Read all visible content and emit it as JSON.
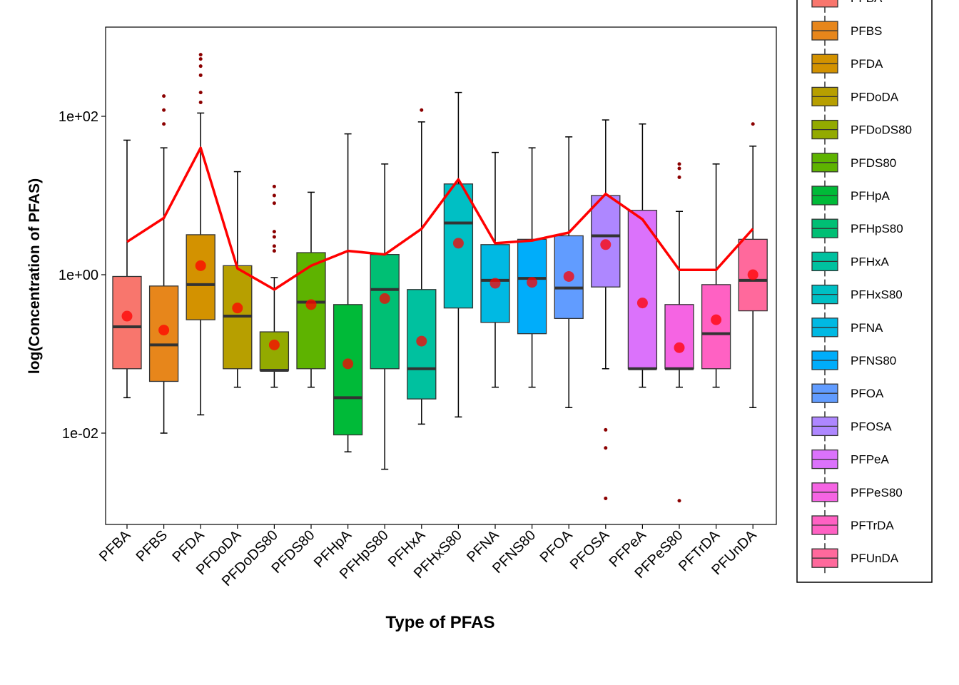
{
  "chart_data": {
    "type": "box",
    "title": "",
    "xlabel": "Type of PFAS",
    "ylabel": "log(Concentration of PFAS)",
    "y_scale": "log10",
    "ylim": [
      0.0003,
      2000
    ],
    "y_ticks": [
      0.01,
      1,
      100
    ],
    "y_tick_labels": [
      "1e-02",
      "1e+00",
      "1e+02"
    ],
    "grid": false,
    "legend_position": "right",
    "mean_marker_color": "#ff0000",
    "outlier_color": "#8b0000",
    "line_color": "#ff0000",
    "categories": [
      "PFBA",
      "PFBS",
      "PFDA",
      "PFDoDA",
      "PFDoDS80",
      "PFDS80",
      "PFHpA",
      "PFHpS80",
      "PFHxA",
      "PFHxS80",
      "PFNA",
      "PFNS80",
      "PFOA",
      "PFOSA",
      "PFPeA",
      "PFPeS80",
      "PFTrDA",
      "PFUnDA"
    ],
    "colors": [
      "#F8766D",
      "#E7861B",
      "#D39200",
      "#B79F00",
      "#93AA00",
      "#5EB300",
      "#00BA38",
      "#00BF74",
      "#00C19F",
      "#00BFC4",
      "#00B9E3",
      "#00ADFA",
      "#619CFF",
      "#AE87FF",
      "#DB72FB",
      "#F564E3",
      "#FF61C3",
      "#FF699C"
    ],
    "boxes": [
      {
        "category": "PFBA",
        "whisker_low": 0.028,
        "q1": 0.065,
        "median": 0.22,
        "q3": 0.95,
        "whisker_high": 50,
        "mean": 0.3,
        "outliers": []
      },
      {
        "category": "PFBS",
        "whisker_low": 0.01,
        "q1": 0.045,
        "median": 0.13,
        "q3": 0.72,
        "whisker_high": 40,
        "mean": 0.2,
        "outliers": [
          80,
          120,
          180
        ]
      },
      {
        "category": "PFDA",
        "whisker_low": 0.017,
        "q1": 0.27,
        "median": 0.75,
        "q3": 3.2,
        "whisker_high": 110,
        "mean": 1.3,
        "outliers": [
          150,
          200,
          330,
          430,
          530,
          600
        ]
      },
      {
        "category": "PFDoDA",
        "whisker_low": 0.038,
        "q1": 0.065,
        "median": 0.3,
        "q3": 1.3,
        "whisker_high": 20,
        "mean": 0.38,
        "outliers": []
      },
      {
        "category": "PFDoDS80",
        "whisker_low": 0.038,
        "q1": 0.062,
        "median": 0.062,
        "q3": 0.19,
        "whisker_high": 0.92,
        "mean": 0.13,
        "outliers": [
          2,
          2.3,
          3,
          3.5,
          8,
          10,
          13
        ]
      },
      {
        "category": "PFDS80",
        "whisker_low": 0.038,
        "q1": 0.065,
        "median": 0.45,
        "q3": 1.9,
        "whisker_high": 11,
        "mean": 0.42,
        "outliers": []
      },
      {
        "category": "PFHpA",
        "whisker_low": 0.0058,
        "q1": 0.0095,
        "median": 0.028,
        "q3": 0.42,
        "whisker_high": 60,
        "mean": 0.075,
        "outliers": []
      },
      {
        "category": "PFHpS80",
        "whisker_low": 0.0035,
        "q1": 0.065,
        "median": 0.65,
        "q3": 1.8,
        "whisker_high": 25,
        "mean": 0.5,
        "outliers": []
      },
      {
        "category": "PFHxA",
        "whisker_low": 0.013,
        "q1": 0.027,
        "median": 0.065,
        "q3": 0.65,
        "whisker_high": 85,
        "mean": 0.145,
        "outliers": [
          120
        ]
      },
      {
        "category": "PFHxS80",
        "whisker_low": 0.016,
        "q1": 0.38,
        "median": 4.5,
        "q3": 14,
        "whisker_high": 200,
        "mean": 2.5,
        "outliers": []
      },
      {
        "category": "PFNA",
        "whisker_low": 0.038,
        "q1": 0.25,
        "median": 0.85,
        "q3": 2.4,
        "whisker_high": 35,
        "mean": 0.78,
        "outliers": []
      },
      {
        "category": "PFNS80",
        "whisker_low": 0.038,
        "q1": 0.18,
        "median": 0.9,
        "q3": 2.8,
        "whisker_high": 40,
        "mean": 0.8,
        "outliers": []
      },
      {
        "category": "PFOA",
        "whisker_low": 0.021,
        "q1": 0.28,
        "median": 0.68,
        "q3": 3.1,
        "whisker_high": 55,
        "mean": 0.95,
        "outliers": []
      },
      {
        "category": "PFOSA",
        "whisker_low": 0.065,
        "q1": 0.7,
        "median": 3.1,
        "q3": 10,
        "whisker_high": 90,
        "mean": 2.4,
        "outliers": [
          0.011,
          0.0065,
          0.0015
        ]
      },
      {
        "category": "PFPeA",
        "whisker_low": 0.038,
        "q1": 0.065,
        "median": 0.065,
        "q3": 6.5,
        "whisker_high": 80,
        "mean": 0.44,
        "outliers": []
      },
      {
        "category": "PFPeS80",
        "whisker_low": 0.038,
        "q1": 0.065,
        "median": 0.065,
        "q3": 0.42,
        "whisker_high": 6.3,
        "mean": 0.12,
        "outliers": [
          17,
          22,
          25,
          0.0014
        ]
      },
      {
        "category": "PFTrDA",
        "whisker_low": 0.038,
        "q1": 0.065,
        "median": 0.18,
        "q3": 0.75,
        "whisker_high": 25,
        "mean": 0.27,
        "outliers": []
      },
      {
        "category": "PFUnDA",
        "whisker_low": 0.021,
        "q1": 0.35,
        "median": 0.85,
        "q3": 2.8,
        "whisker_high": 42,
        "mean": 1.0,
        "outliers": [
          80
        ]
      }
    ],
    "line_series": {
      "values": [
        2.6,
        5.2,
        40,
        1.2,
        0.65,
        1.3,
        2.0,
        1.8,
        3.8,
        16,
        2.5,
        2.7,
        3.4,
        10.5,
        5,
        1.15,
        1.15,
        3.8
      ]
    }
  }
}
